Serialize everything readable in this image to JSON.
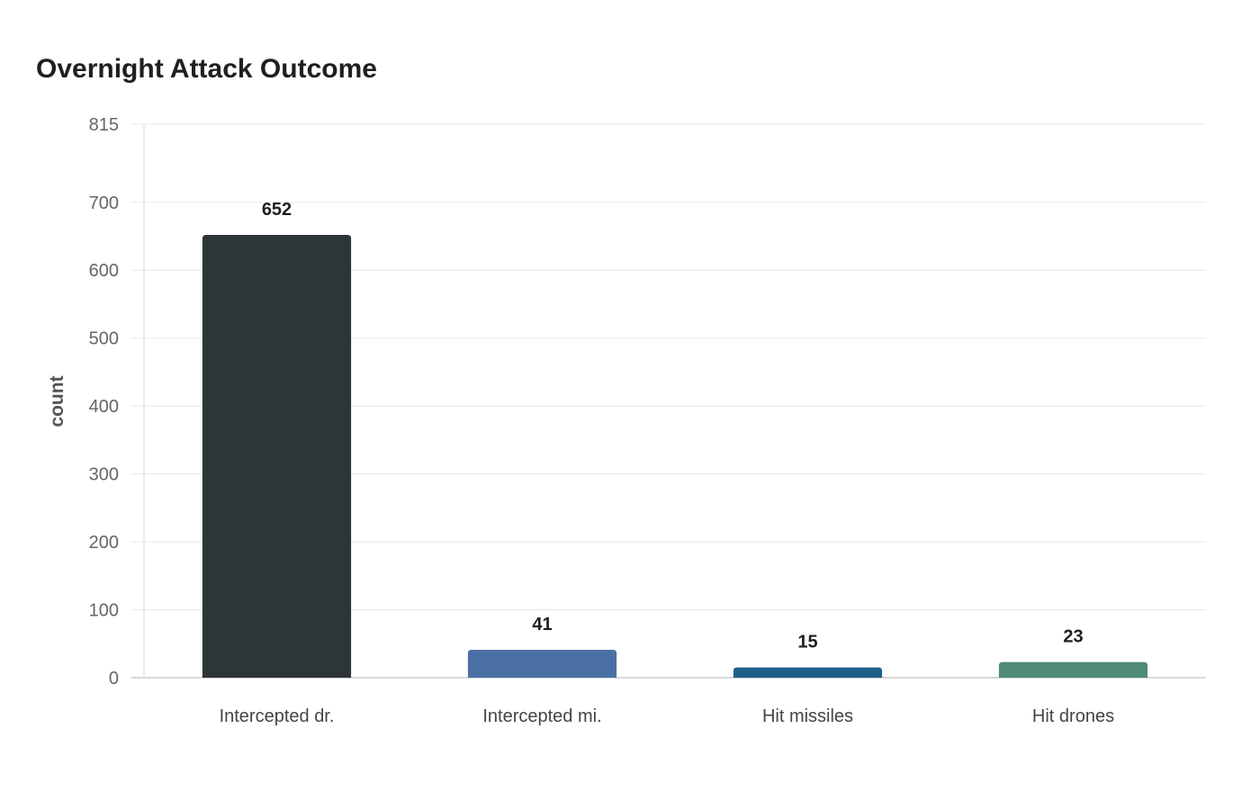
{
  "chart_data": {
    "type": "bar",
    "title": "Overnight Attack Outcome",
    "xlabel": "",
    "ylabel": "count",
    "categories": [
      "Intercepted dr.",
      "Intercepted mi.",
      "Hit missiles",
      "Hit drones"
    ],
    "values": [
      652,
      41,
      15,
      23
    ],
    "colors": [
      "#2e3538",
      "#4a6fa5",
      "#1f5f8b",
      "#4f8a78"
    ],
    "ylim": [
      0,
      815
    ],
    "yticks": [
      0,
      100,
      200,
      300,
      400,
      500,
      600,
      700,
      815
    ],
    "grid": true,
    "legend": "none"
  }
}
